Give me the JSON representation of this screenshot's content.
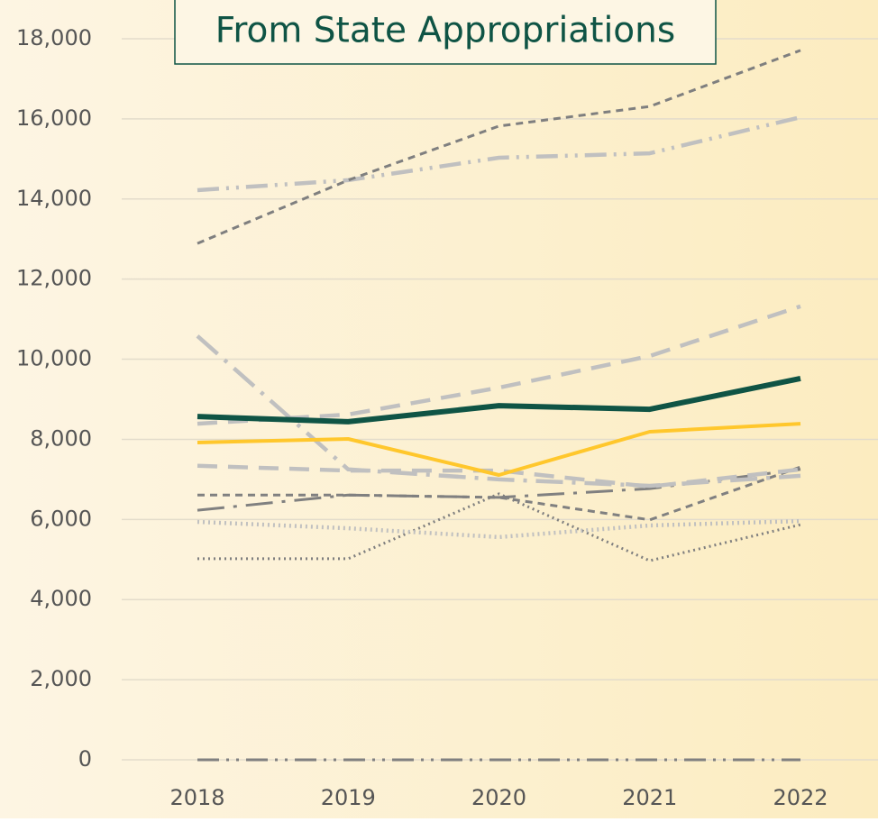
{
  "chart_data": {
    "type": "line",
    "title": "From State Appropriations",
    "categories": [
      "2018",
      "2019",
      "2020",
      "2021",
      "2022"
    ],
    "ylim": [
      0,
      18000
    ],
    "yticks": [
      0,
      {
        "value": 2000,
        "label": "2,000"
      },
      {
        "value": 4000,
        "label": "4,000"
      },
      {
        "value": 6000,
        "label": "6,000"
      },
      {
        "value": 8000,
        "label": "8,000"
      },
      {
        "value": 10000,
        "label": "10,000"
      },
      {
        "value": 12000,
        "label": "12,000"
      },
      {
        "value": 14000,
        "label": "14,000"
      },
      {
        "value": 16000,
        "label": "16,000"
      },
      {
        "value": 18000,
        "label": "18,000"
      }
    ],
    "grid": true,
    "series": [
      {
        "color": "#808080",
        "dash": "dash-dot-dot",
        "values": [
          0,
          0,
          0,
          0,
          0
        ]
      },
      {
        "color": "#7f7f7f",
        "dash": "dot",
        "values": [
          5020,
          5020,
          6640,
          4970,
          5870
        ]
      },
      {
        "color": "#c0c0c0",
        "dash": "dot",
        "values": [
          5940,
          5780,
          5560,
          5850,
          5960
        ]
      },
      {
        "color": "#808080",
        "dash": "long-dash-dot",
        "values": [
          6230,
          6610,
          6550,
          6770,
          7250
        ]
      },
      {
        "color": "#808080",
        "dash": "dash",
        "values": [
          6610,
          6610,
          6550,
          5990,
          7310
        ]
      },
      {
        "color": "#c0c0c0",
        "dash": "long-dash",
        "values": [
          7340,
          7220,
          7220,
          6820,
          7250
        ]
      },
      {
        "color": "#c0c0c0",
        "dash": "long-dash-dot",
        "values": [
          10580,
          7250,
          7000,
          6840,
          7090
        ]
      },
      {
        "color": "#c0c0c0",
        "dash": "long-dash",
        "values": [
          8390,
          8620,
          9290,
          10080,
          11320
        ]
      },
      {
        "color": "#c0c0c0",
        "dash": "dash-dot-dot",
        "values": [
          14220,
          14470,
          15030,
          15140,
          16040
        ]
      },
      {
        "color": "#7f7f7f",
        "dash": "dash",
        "values": [
          12890,
          14470,
          15820,
          16310,
          17710
        ]
      },
      {
        "color": "#ffc72c",
        "dash": "solid",
        "values": [
          7920,
          8010,
          7110,
          8190,
          8390
        ]
      },
      {
        "color": "#0f5445",
        "dash": "solid",
        "values": [
          8570,
          8440,
          8840,
          8750,
          9520
        ]
      }
    ]
  }
}
